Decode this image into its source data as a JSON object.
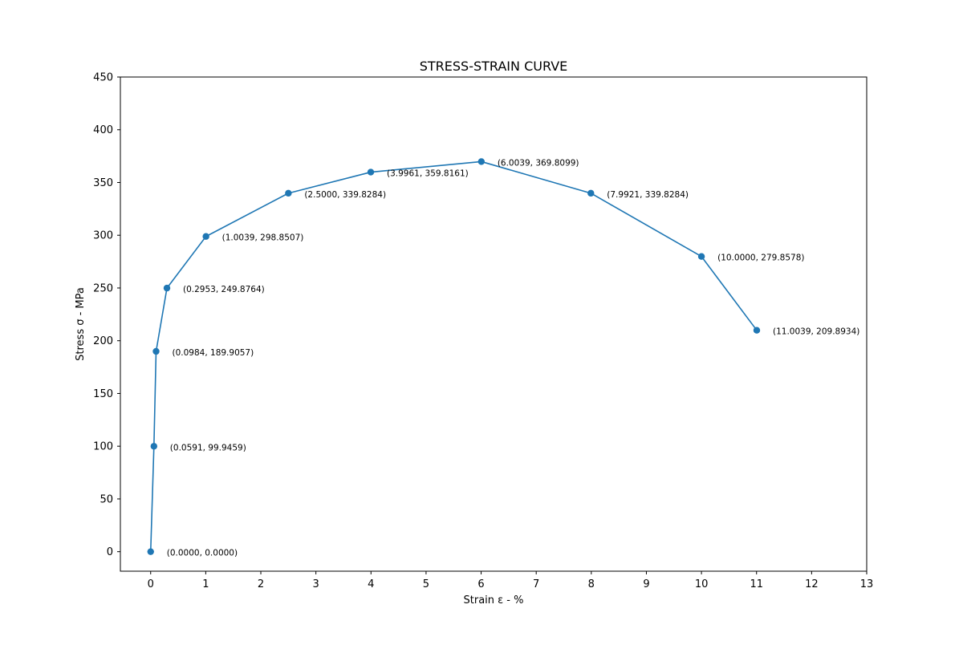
{
  "chart_data": {
    "type": "line",
    "title": "STRESS-STRAIN CURVE",
    "xlabel": "Strain ε - %",
    "ylabel": "Stress σ - MPa",
    "xlim": [
      -0.55,
      13
    ],
    "ylim": [
      -18.5,
      450
    ],
    "xticks": [
      0,
      1,
      2,
      3,
      4,
      5,
      6,
      7,
      8,
      9,
      10,
      11,
      12,
      13
    ],
    "yticks": [
      0,
      50,
      100,
      150,
      200,
      250,
      300,
      350,
      400,
      450
    ],
    "grid": false,
    "color": "#1f77b4",
    "series": [
      {
        "x": [
          0.0,
          0.0591,
          0.0984,
          0.2953,
          1.0039,
          2.5,
          3.9961,
          6.0039,
          7.9921,
          10.0,
          11.0039
        ],
        "y": [
          0.0,
          99.9459,
          189.9057,
          249.8764,
          298.8507,
          339.8284,
          359.8161,
          369.8099,
          339.8284,
          279.8578,
          209.8934
        ]
      }
    ],
    "annotations": [
      "(0.0000, 0.0000)",
      "(0.0591, 99.9459)",
      "(0.0984, 189.9057)",
      "(0.2953, 249.8764)",
      "(1.0039, 298.8507)",
      "(2.5000, 339.8284)",
      "(3.9961, 359.8161)",
      "(6.0039, 369.8099)",
      "(7.9921, 339.8284)",
      "(10.0000, 279.8578)",
      "(11.0039, 209.8934)"
    ]
  }
}
